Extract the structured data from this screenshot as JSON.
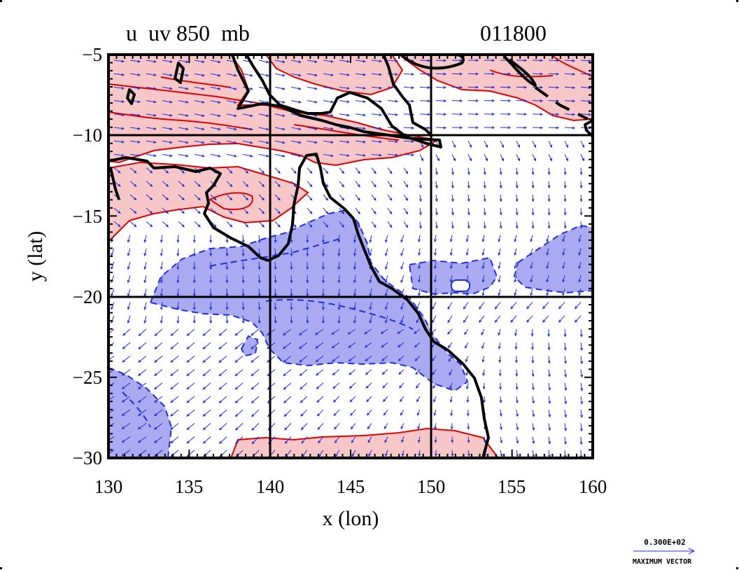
{
  "title_left": "u  uv 850  mb",
  "title_right": "011800",
  "x_label": "x (lon)",
  "y_label": "y (lat)",
  "x_ticks": [
    "130",
    "135",
    "140",
    "145",
    "150",
    "155",
    "160"
  ],
  "y_ticks": [
    "−5",
    "−10",
    "−15",
    "−20",
    "−25",
    "−30"
  ],
  "legend": {
    "value": "0.300E+02",
    "caption": "MAXIMUM VECTOR"
  },
  "colors": {
    "positive_fill": "#f7c6c6",
    "positive_line": "#e00000",
    "negative_fill": "#a9aaf2",
    "negative_line": "#1d2ee0",
    "vector": "#1d2ee0",
    "coast": "#000000"
  },
  "chart_data": {
    "type": "contour-vector-map",
    "xlim": [
      130,
      160
    ],
    "ylim": [
      -30,
      -5
    ],
    "grid_lon": [
      140,
      150
    ],
    "grid_lat": [
      -10,
      -20
    ]
  }
}
